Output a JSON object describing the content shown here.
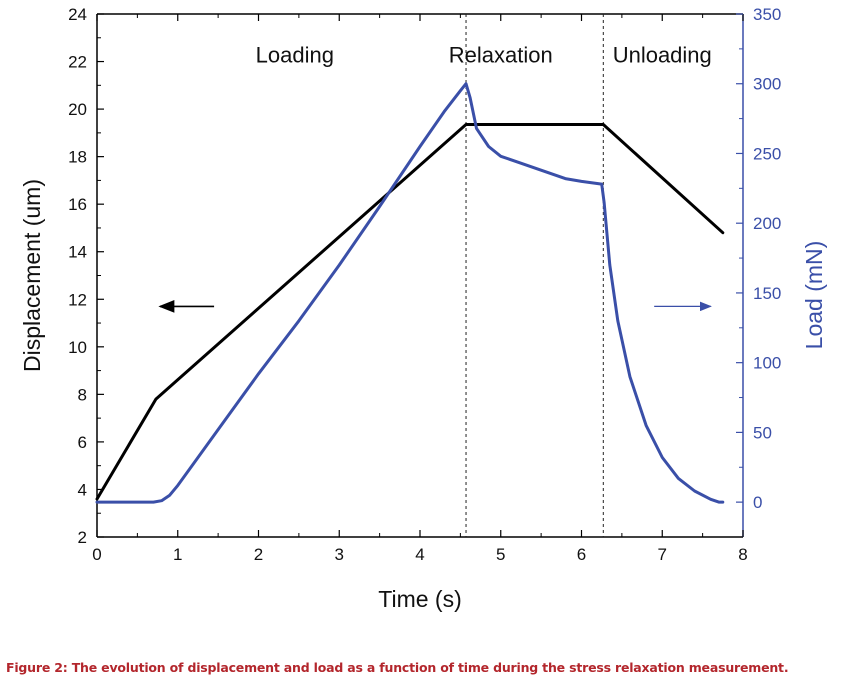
{
  "chart_data": {
    "type": "line",
    "xlabel": "Time (s)",
    "ylabel": "Displacement (um)",
    "y2label": "Load (mN)",
    "xlim": [
      0,
      8
    ],
    "ylim": [
      2,
      24
    ],
    "y2lim": [
      -25,
      350
    ],
    "xticks": [
      0,
      1,
      2,
      3,
      4,
      5,
      6,
      7,
      8
    ],
    "yticks": [
      2,
      4,
      6,
      8,
      10,
      12,
      14,
      16,
      18,
      20,
      22,
      24
    ],
    "y2ticks": [
      0,
      50,
      100,
      150,
      200,
      250,
      300,
      350
    ],
    "grid": false,
    "legend": "none",
    "phase_labels": [
      {
        "text": "Loading",
        "x": 2.45,
        "y": 22.3
      },
      {
        "text": "Relaxation",
        "x": 5.0,
        "y": 22.3
      },
      {
        "text": "Unloading",
        "x": 7.0,
        "y": 22.3
      }
    ],
    "phase_boundaries": [
      4.57,
      6.27
    ],
    "series": [
      {
        "axis": "left",
        "color": "#000000",
        "x": [
          0,
          0.73,
          4.57,
          6.27,
          7.75
        ],
        "y": [
          3.6,
          7.8,
          19.35,
          19.35,
          14.8
        ]
      },
      {
        "axis": "right",
        "color": "#3a4fa8",
        "x": [
          0,
          0.7,
          0.8,
          0.9,
          1.0,
          1.2,
          1.5,
          2.0,
          2.5,
          3.0,
          3.5,
          4.0,
          4.3,
          4.5,
          4.57,
          4.62,
          4.7,
          4.85,
          5.0,
          5.2,
          5.5,
          5.8,
          6.0,
          6.25,
          6.28,
          6.35,
          6.45,
          6.6,
          6.8,
          7.0,
          7.2,
          7.4,
          7.6,
          7.7,
          7.75
        ],
        "y": [
          0,
          0,
          1,
          5,
          12,
          28,
          52,
          92,
          130,
          170,
          212,
          255,
          280,
          295,
          300,
          290,
          268,
          255,
          248,
          244,
          238,
          232,
          230,
          228,
          215,
          170,
          130,
          90,
          55,
          32,
          17,
          8,
          2,
          0,
          0
        ]
      }
    ],
    "arrows": [
      {
        "axis": "left",
        "from": 1.45,
        "to": 0.78,
        "y": 11.7,
        "color": "#000000"
      },
      {
        "axis": "left",
        "from": 6.9,
        "to": 7.6,
        "y": 11.7,
        "color": "#3a4fa8"
      }
    ]
  },
  "caption": "Figure 2: The evolution of displacement and load as a function of time during the stress relaxation measurement."
}
